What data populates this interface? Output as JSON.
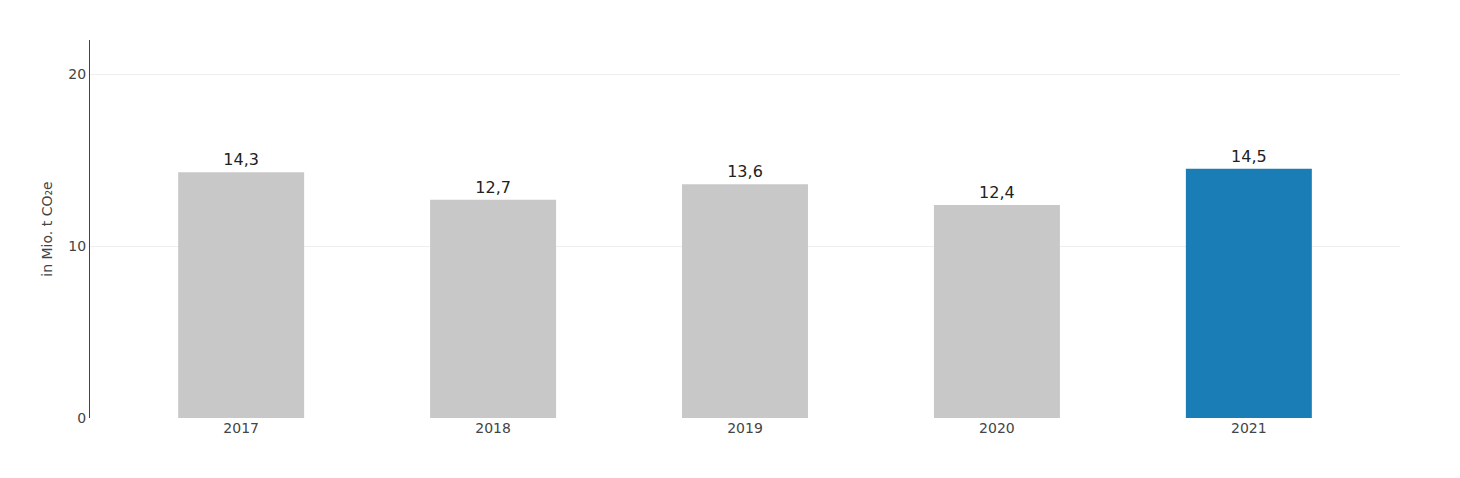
{
  "chart_data": {
    "type": "bar",
    "categories": [
      "2017",
      "2018",
      "2019",
      "2020",
      "2021"
    ],
    "values": [
      14.3,
      12.7,
      13.6,
      12.4,
      14.5
    ],
    "value_labels": [
      "14,3",
      "12,7",
      "13,6",
      "12,4",
      "14,5"
    ],
    "data_labels": true,
    "colors": [
      "#c8c8c8",
      "#c8c8c8",
      "#c8c8c8",
      "#c8c8c8",
      "#1b7db5"
    ],
    "ylabel": "in Mio. t CO₂e",
    "ylim": [
      0,
      22
    ],
    "yticks": [
      0,
      10,
      20
    ],
    "grid": true
  }
}
